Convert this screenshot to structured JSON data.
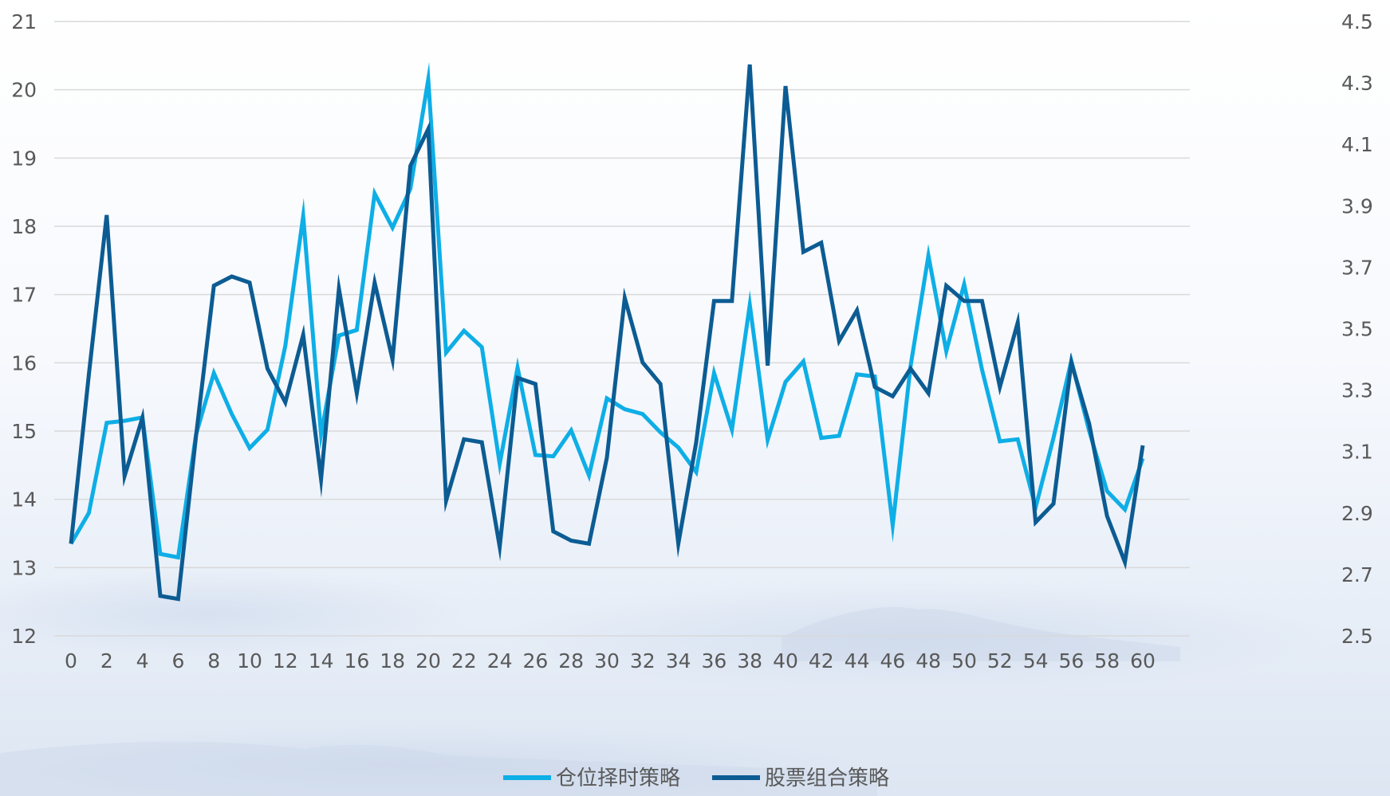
{
  "chart_data": {
    "type": "line",
    "x": [
      0,
      1,
      2,
      3,
      4,
      5,
      6,
      7,
      8,
      9,
      10,
      11,
      12,
      13,
      14,
      15,
      16,
      17,
      18,
      19,
      20,
      21,
      22,
      23,
      24,
      25,
      26,
      27,
      28,
      29,
      30,
      31,
      32,
      33,
      34,
      35,
      36,
      37,
      38,
      39,
      40,
      41,
      42,
      43,
      44,
      45,
      46,
      47,
      48,
      49,
      50,
      51,
      52,
      53,
      54,
      55,
      56,
      57,
      58,
      59,
      60
    ],
    "x_ticks": [
      0,
      2,
      4,
      6,
      8,
      10,
      12,
      14,
      16,
      18,
      20,
      22,
      24,
      26,
      28,
      30,
      32,
      34,
      36,
      38,
      40,
      42,
      44,
      46,
      48,
      50,
      52,
      54,
      56,
      58,
      60
    ],
    "xlim": [
      0,
      60
    ],
    "y_left": {
      "min": 12,
      "max": 21,
      "ticks": [
        12,
        13,
        14,
        15,
        16,
        17,
        18,
        19,
        20,
        21
      ]
    },
    "y_right": {
      "min": 2.5,
      "max": 4.5,
      "ticks": [
        "2.5",
        "2.7",
        "2.9",
        "3.1",
        "3.3",
        "3.5",
        "3.7",
        "3.9",
        "4.1",
        "4.3",
        "4.5"
      ]
    },
    "grid": true,
    "legend_position": "bottom",
    "series": [
      {
        "name": "仓位择时策略",
        "axis": "left",
        "color": "#0eaee6",
        "values": [
          13.35,
          13.8,
          15.12,
          15.15,
          15.2,
          13.2,
          13.15,
          14.95,
          15.85,
          15.25,
          14.75,
          15.02,
          16.25,
          18.15,
          14.95,
          16.4,
          16.48,
          18.48,
          17.98,
          18.55,
          20.15,
          16.15,
          16.47,
          16.23,
          14.52,
          15.93,
          14.65,
          14.63,
          15.01,
          14.35,
          15.48,
          15.32,
          15.25,
          14.98,
          14.76,
          14.4,
          15.85,
          15.02,
          16.85,
          14.87,
          15.72,
          16.02,
          14.9,
          14.93,
          15.83,
          15.8,
          13.62,
          15.95,
          17.57,
          16.17,
          17.15,
          15.9,
          14.85,
          14.88,
          13.88,
          14.9,
          16.03,
          15.0,
          14.12,
          13.85,
          14.6
        ]
      },
      {
        "name": "股票组合策略",
        "axis": "right",
        "color": "#0c5c93",
        "values": [
          2.8,
          3.35,
          3.87,
          3.02,
          3.21,
          2.63,
          2.62,
          3.15,
          3.64,
          3.67,
          3.65,
          3.37,
          3.26,
          3.48,
          3.01,
          3.63,
          3.29,
          3.65,
          3.4,
          4.03,
          4.15,
          2.94,
          3.14,
          3.13,
          2.79,
          3.34,
          3.32,
          2.84,
          2.81,
          2.8,
          3.08,
          3.6,
          3.39,
          3.32,
          2.8,
          3.13,
          3.59,
          3.59,
          4.36,
          3.38,
          4.29,
          3.75,
          3.78,
          3.46,
          3.56,
          3.31,
          3.28,
          3.37,
          3.29,
          3.64,
          3.59,
          3.59,
          3.31,
          3.52,
          2.87,
          2.93,
          3.39,
          3.19,
          2.89,
          2.74,
          3.12
        ]
      }
    ]
  }
}
